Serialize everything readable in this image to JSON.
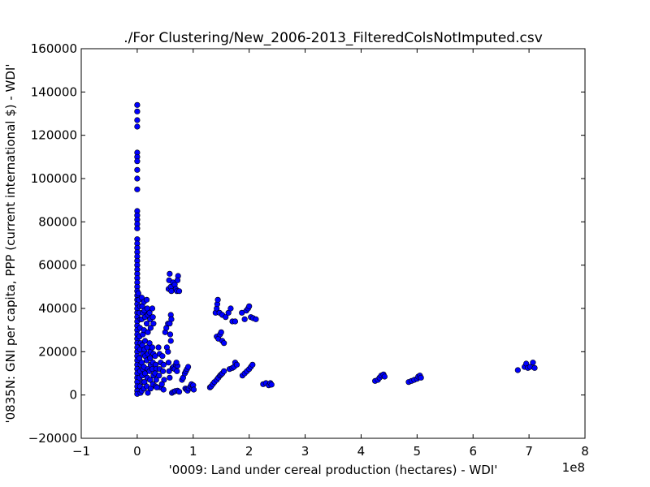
{
  "chart_data": {
    "type": "scatter",
    "title": "./For Clustering/New_2006-2013_FilteredColsNotImputed.csv",
    "xlabel": "'0009: Land under cereal production  (hectares) - WDI'",
    "ylabel": "'0835N: GNI per capita, PPP  (current international $) - WDI'",
    "x_offset_label": "1e8",
    "xlim": [
      -1,
      8
    ],
    "ylim": [
      -20000,
      160000
    ],
    "x_ticks": [
      -1,
      0,
      1,
      2,
      3,
      4,
      5,
      6,
      7,
      8
    ],
    "x_tick_labels": [
      "−1",
      "0",
      "1",
      "2",
      "3",
      "4",
      "5",
      "6",
      "7",
      "8"
    ],
    "y_ticks": [
      -20000,
      0,
      20000,
      40000,
      60000,
      80000,
      100000,
      120000,
      140000,
      160000
    ],
    "y_tick_labels": [
      "−20000",
      "0",
      "20000",
      "40000",
      "60000",
      "80000",
      "100000",
      "120000",
      "140000",
      "160000"
    ],
    "grid": false,
    "marker_color": "#0000ff",
    "marker_edge_color": "#000000",
    "points": [
      [
        0.0,
        134000
      ],
      [
        0.0,
        131000
      ],
      [
        0.0,
        127000
      ],
      [
        0.0,
        124000
      ],
      [
        0.0,
        112000
      ],
      [
        0.0,
        110000
      ],
      [
        0.0,
        108000
      ],
      [
        0.0,
        104000
      ],
      [
        0.0,
        100000
      ],
      [
        0.0,
        95000
      ],
      [
        0.0,
        85000
      ],
      [
        0.0,
        83000
      ],
      [
        0.0,
        81000
      ],
      [
        0.0,
        79000
      ],
      [
        0.0,
        77000
      ],
      [
        0.0,
        72000
      ],
      [
        0.0,
        70000
      ],
      [
        0.0,
        68000
      ],
      [
        0.0,
        66000
      ],
      [
        0.0,
        64000
      ],
      [
        0.0,
        62000
      ],
      [
        0.0,
        60000
      ],
      [
        0.0,
        58000
      ],
      [
        0.0,
        56000
      ],
      [
        0.0,
        54000
      ],
      [
        0.0,
        52000
      ],
      [
        0.0,
        50000
      ],
      [
        0.0,
        48000
      ],
      [
        0.0,
        46000
      ],
      [
        0.0,
        44000
      ],
      [
        0.0,
        42000
      ],
      [
        0.0,
        40000
      ],
      [
        0.0,
        38000
      ],
      [
        0.0,
        36000
      ],
      [
        0.0,
        34000
      ],
      [
        0.0,
        32000
      ],
      [
        0.0,
        30000
      ],
      [
        0.0,
        28000
      ],
      [
        0.0,
        26000
      ],
      [
        0.0,
        24000
      ],
      [
        0.0,
        22000
      ],
      [
        0.0,
        20000
      ],
      [
        0.0,
        18000
      ],
      [
        0.0,
        16000
      ],
      [
        0.0,
        14000
      ],
      [
        0.0,
        12000
      ],
      [
        0.0,
        10000
      ],
      [
        0.0,
        8000
      ],
      [
        0.0,
        6000
      ],
      [
        0.0,
        4000
      ],
      [
        0.0,
        2000
      ],
      [
        0.0,
        500
      ],
      [
        0.02,
        47000
      ],
      [
        0.03,
        44000
      ],
      [
        0.05,
        41000
      ],
      [
        0.04,
        38000
      ],
      [
        0.06,
        35000
      ],
      [
        0.05,
        31000
      ],
      [
        0.04,
        27000
      ],
      [
        0.06,
        24000
      ],
      [
        0.05,
        21000
      ],
      [
        0.04,
        17000
      ],
      [
        0.06,
        14000
      ],
      [
        0.05,
        11000
      ],
      [
        0.04,
        8000
      ],
      [
        0.05,
        4000
      ],
      [
        0.06,
        1000
      ],
      [
        0.08,
        45000
      ],
      [
        0.09,
        41000
      ],
      [
        0.1,
        38000
      ],
      [
        0.08,
        35000
      ],
      [
        0.1,
        28000
      ],
      [
        0.09,
        23000
      ],
      [
        0.1,
        19000
      ],
      [
        0.08,
        15000
      ],
      [
        0.1,
        12000
      ],
      [
        0.09,
        9000
      ],
      [
        0.1,
        6000
      ],
      [
        0.08,
        2000
      ],
      [
        0.12,
        43000
      ],
      [
        0.13,
        39000
      ],
      [
        0.14,
        36000
      ],
      [
        0.12,
        30000
      ],
      [
        0.14,
        25000
      ],
      [
        0.13,
        21000
      ],
      [
        0.14,
        18000
      ],
      [
        0.12,
        13000
      ],
      [
        0.14,
        10000
      ],
      [
        0.13,
        6000
      ],
      [
        0.12,
        3000
      ],
      [
        0.17,
        44000
      ],
      [
        0.18,
        40000
      ],
      [
        0.19,
        37000
      ],
      [
        0.17,
        33000
      ],
      [
        0.19,
        29000
      ],
      [
        0.18,
        22000
      ],
      [
        0.19,
        19000
      ],
      [
        0.17,
        16000
      ],
      [
        0.19,
        12000
      ],
      [
        0.18,
        8000
      ],
      [
        0.17,
        4000
      ],
      [
        0.19,
        1000
      ],
      [
        0.22,
        38000
      ],
      [
        0.23,
        35000
      ],
      [
        0.24,
        31000
      ],
      [
        0.22,
        24000
      ],
      [
        0.24,
        20000
      ],
      [
        0.23,
        17000
      ],
      [
        0.24,
        14000
      ],
      [
        0.22,
        11000
      ],
      [
        0.23,
        7000
      ],
      [
        0.24,
        3000
      ],
      [
        0.27,
        40000
      ],
      [
        0.28,
        36000
      ],
      [
        0.29,
        33000
      ],
      [
        0.27,
        22000
      ],
      [
        0.29,
        19000
      ],
      [
        0.28,
        15000
      ],
      [
        0.27,
        12000
      ],
      [
        0.29,
        9000
      ],
      [
        0.28,
        5000
      ],
      [
        0.32,
        18000
      ],
      [
        0.33,
        14000
      ],
      [
        0.34,
        12000
      ],
      [
        0.32,
        10000
      ],
      [
        0.34,
        7000
      ],
      [
        0.33,
        4000
      ],
      [
        0.38,
        22000
      ],
      [
        0.4,
        19000
      ],
      [
        0.42,
        15000
      ],
      [
        0.4,
        12000
      ],
      [
        0.39,
        9000
      ],
      [
        0.41,
        3500
      ],
      [
        0.35,
        3500
      ],
      [
        0.45,
        18000
      ],
      [
        0.47,
        14000
      ],
      [
        0.46,
        11000
      ],
      [
        0.48,
        7000
      ],
      [
        0.44,
        5000
      ],
      [
        0.47,
        2500
      ],
      [
        0.5,
        29000
      ],
      [
        0.52,
        31000
      ],
      [
        0.55,
        33000
      ],
      [
        0.53,
        22000
      ],
      [
        0.55,
        20000
      ],
      [
        0.56,
        15000
      ],
      [
        0.57,
        11000
      ],
      [
        0.58,
        8000
      ],
      [
        0.56,
        49000
      ],
      [
        0.57,
        53000
      ],
      [
        0.58,
        56000
      ],
      [
        0.6,
        50000
      ],
      [
        0.61,
        48000
      ],
      [
        0.6,
        37000
      ],
      [
        0.61,
        35000
      ],
      [
        0.58,
        33000
      ],
      [
        0.59,
        28000
      ],
      [
        0.6,
        25000
      ],
      [
        0.63,
        12500
      ],
      [
        0.65,
        13000
      ],
      [
        0.67,
        12000
      ],
      [
        0.69,
        14000
      ],
      [
        0.71,
        11000
      ],
      [
        0.72,
        13500
      ],
      [
        0.7,
        15000
      ],
      [
        0.62,
        1000
      ],
      [
        0.65,
        1500
      ],
      [
        0.68,
        1800
      ],
      [
        0.72,
        2000
      ],
      [
        0.75,
        1500
      ],
      [
        0.64,
        52000
      ],
      [
        0.67,
        51000
      ],
      [
        0.69,
        49000
      ],
      [
        0.71,
        48000
      ],
      [
        0.73,
        55000
      ],
      [
        0.75,
        48000
      ],
      [
        0.72,
        53000
      ],
      [
        0.8,
        7000
      ],
      [
        0.82,
        8000
      ],
      [
        0.85,
        10000
      ],
      [
        0.87,
        11000
      ],
      [
        0.89,
        12000
      ],
      [
        0.91,
        13000
      ],
      [
        0.86,
        3000
      ],
      [
        0.88,
        2500
      ],
      [
        0.9,
        2000
      ],
      [
        0.92,
        3000
      ],
      [
        0.95,
        4000
      ],
      [
        0.97,
        5000
      ],
      [
        0.99,
        3000
      ],
      [
        1.0,
        4500
      ],
      [
        1.01,
        2500
      ],
      [
        1.3,
        3500
      ],
      [
        1.32,
        4000
      ],
      [
        1.35,
        5000
      ],
      [
        1.38,
        6000
      ],
      [
        1.42,
        7000
      ],
      [
        1.45,
        8000
      ],
      [
        1.48,
        9000
      ],
      [
        1.5,
        9500
      ],
      [
        1.52,
        10000
      ],
      [
        1.55,
        11000
      ],
      [
        1.4,
        38000
      ],
      [
        1.42,
        40000
      ],
      [
        1.43,
        42000
      ],
      [
        1.44,
        44000
      ],
      [
        1.47,
        38000
      ],
      [
        1.52,
        37000
      ],
      [
        1.58,
        36000
      ],
      [
        1.63,
        38000
      ],
      [
        1.67,
        40000
      ],
      [
        1.7,
        34000
      ],
      [
        1.75,
        34000
      ],
      [
        1.42,
        27000
      ],
      [
        1.45,
        26000
      ],
      [
        1.48,
        28000
      ],
      [
        1.5,
        29000
      ],
      [
        1.52,
        25000
      ],
      [
        1.55,
        24000
      ],
      [
        1.65,
        12000
      ],
      [
        1.7,
        12500
      ],
      [
        1.73,
        13000
      ],
      [
        1.75,
        15000
      ],
      [
        1.78,
        14000
      ],
      [
        1.88,
        9000
      ],
      [
        1.92,
        10000
      ],
      [
        1.96,
        11000
      ],
      [
        2.0,
        12000
      ],
      [
        2.03,
        13000
      ],
      [
        2.06,
        14000
      ],
      [
        1.87,
        38000
      ],
      [
        1.92,
        35000
      ],
      [
        1.95,
        39000
      ],
      [
        1.98,
        40000
      ],
      [
        2.0,
        41000
      ],
      [
        2.03,
        36000
      ],
      [
        2.07,
        35500
      ],
      [
        2.12,
        35000
      ],
      [
        2.25,
        5000
      ],
      [
        2.3,
        5500
      ],
      [
        2.35,
        4500
      ],
      [
        2.38,
        5500
      ],
      [
        2.4,
        4800
      ],
      [
        4.25,
        6500
      ],
      [
        4.3,
        7000
      ],
      [
        4.33,
        8000
      ],
      [
        4.36,
        9000
      ],
      [
        4.4,
        9500
      ],
      [
        4.42,
        8500
      ],
      [
        4.85,
        6000
      ],
      [
        4.9,
        6500
      ],
      [
        4.95,
        7000
      ],
      [
        5.0,
        7500
      ],
      [
        5.02,
        8500
      ],
      [
        5.05,
        9000
      ],
      [
        5.07,
        8000
      ],
      [
        6.8,
        11500
      ],
      [
        6.92,
        13000
      ],
      [
        6.95,
        14500
      ],
      [
        6.98,
        12500
      ],
      [
        7.02,
        13000
      ],
      [
        7.07,
        15000
      ],
      [
        7.1,
        12500
      ]
    ]
  }
}
